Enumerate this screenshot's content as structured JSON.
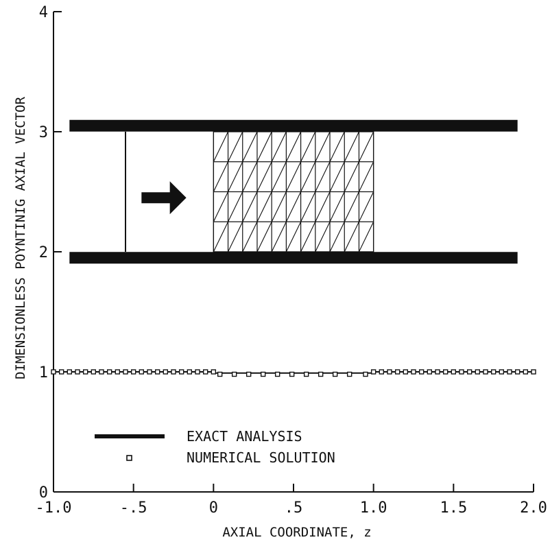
{
  "chart_data": {
    "type": "line",
    "xlabel": "AXIAL COORDINATE, z",
    "ylabel": "DIMENSIONLESS POYNTINIG AXIAL VECTOR",
    "xlim": [
      -1.0,
      2.0
    ],
    "ylim": [
      0,
      4
    ],
    "x_ticks": [
      -1.0,
      -0.5,
      0,
      0.5,
      1.0,
      1.5,
      2.0
    ],
    "x_tick_labels": [
      "-1.0",
      "-.5",
      "0",
      ".5",
      "1.0",
      "1.5",
      "2.0"
    ],
    "y_ticks": [
      0,
      1,
      2,
      3,
      4
    ],
    "y_tick_labels": [
      "0",
      "1",
      "2",
      "3",
      "4"
    ],
    "grid": false,
    "legend_position": "bottom-left",
    "series": [
      {
        "name": "EXACT ANALYSIS",
        "style": "solid-line",
        "x": [
          -1.0,
          0.0,
          0.0,
          1.0,
          1.0,
          2.0
        ],
        "y": [
          1.0,
          1.0,
          0.99,
          0.99,
          1.0,
          1.0
        ]
      },
      {
        "name": "NUMERICAL SOLUTION",
        "style": "square-markers",
        "x": [
          -1.0,
          -0.95,
          -0.9,
          -0.85,
          -0.8,
          -0.75,
          -0.7,
          -0.65,
          -0.6,
          -0.55,
          -0.5,
          -0.45,
          -0.4,
          -0.35,
          -0.3,
          -0.25,
          -0.2,
          -0.15,
          -0.1,
          -0.05,
          0.0,
          0.04,
          0.13,
          0.22,
          0.31,
          0.4,
          0.49,
          0.58,
          0.67,
          0.76,
          0.85,
          0.95,
          1.0,
          1.05,
          1.1,
          1.15,
          1.2,
          1.25,
          1.3,
          1.35,
          1.4,
          1.45,
          1.5,
          1.55,
          1.6,
          1.65,
          1.7,
          1.75,
          1.8,
          1.85,
          1.9,
          1.95,
          2.0
        ],
        "y": [
          1.0,
          1.0,
          1.0,
          1.0,
          1.0,
          1.0,
          1.0,
          1.0,
          1.0,
          1.0,
          1.0,
          1.0,
          1.0,
          1.0,
          1.0,
          1.0,
          1.0,
          1.0,
          1.0,
          1.0,
          1.0,
          0.98,
          0.98,
          0.98,
          0.98,
          0.98,
          0.98,
          0.98,
          0.98,
          0.98,
          0.98,
          0.98,
          1.0,
          1.0,
          1.0,
          1.0,
          1.0,
          1.0,
          1.0,
          1.0,
          1.0,
          1.0,
          1.0,
          1.0,
          1.0,
          1.0,
          1.0,
          1.0,
          1.0,
          1.0,
          1.0,
          1.0,
          1.0
        ]
      }
    ],
    "inset_schematic": {
      "x_range": [
        -0.9,
        1.9
      ],
      "top_plate_y": 3.05,
      "bottom_plate_y": 1.95,
      "inner_top_y": 3.0,
      "inner_bottom_y": 2.0,
      "wavefront_x": -0.55,
      "arrow": {
        "x_start": -0.45,
        "x_end": -0.17,
        "y": 2.45,
        "direction": "right"
      },
      "mesh": {
        "x_start": 0.0,
        "x_end": 1.0,
        "columns": 11,
        "rows": 4
      }
    },
    "colors": {
      "ink": "#111111",
      "background": "#ffffff"
    }
  }
}
